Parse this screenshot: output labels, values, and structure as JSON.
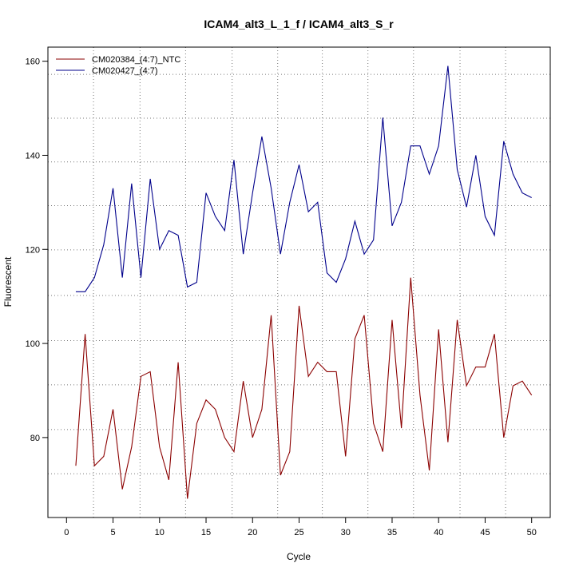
{
  "chart_data": {
    "type": "line",
    "title": "ICAM4_alt3_L_1_f / ICAM4_alt3_S_r",
    "xlabel": "Cycle",
    "ylabel": "Fluorescent",
    "xlim": [
      -2,
      52
    ],
    "ylim": [
      63,
      163
    ],
    "x_ticks": [
      0,
      5,
      10,
      15,
      20,
      25,
      30,
      35,
      40,
      45,
      50
    ],
    "x_tick_labels": [
      "0",
      "5",
      "10",
      "15",
      "20",
      "25",
      "30",
      "35",
      "40",
      "45",
      "50"
    ],
    "y_ticks": [
      80,
      100,
      120,
      140,
      160
    ],
    "y_tick_labels": [
      "80",
      "100",
      "120",
      "140",
      "160"
    ],
    "h_gridlines": [
      72.3,
      81.7,
      91.2,
      100.6,
      110.2,
      119.9,
      129.3,
      138.6,
      147.9,
      157.2
    ],
    "v_gridlines": [
      2.9,
      7.9,
      12.8,
      17.8,
      22.7,
      27.5,
      32.4,
      37.3,
      42.3,
      47.2
    ],
    "legend_position": "top-left",
    "colors": {
      "ntc": "#8b0000",
      "sample": "#00008b"
    },
    "x": [
      1,
      2,
      3,
      4,
      5,
      6,
      7,
      8,
      9,
      10,
      11,
      12,
      13,
      14,
      15,
      16,
      17,
      18,
      19,
      20,
      21,
      22,
      23,
      24,
      25,
      26,
      27,
      28,
      29,
      30,
      31,
      32,
      33,
      34,
      35,
      36,
      37,
      38,
      39,
      40,
      41,
      42,
      43,
      44,
      45,
      46,
      47,
      48,
      49,
      50
    ],
    "series": [
      {
        "name": "CM020384_(4:7)_NTC",
        "color": "#8b0000",
        "values": [
          74,
          102,
          74,
          76,
          86,
          69,
          78,
          93,
          94,
          78,
          71,
          96,
          67,
          83,
          88,
          86,
          80,
          77,
          92,
          80,
          86,
          106,
          72,
          77,
          108,
          93,
          96,
          94,
          94,
          76,
          101,
          106,
          83,
          77,
          105,
          82,
          114,
          89,
          73,
          103,
          79,
          105,
          91,
          95,
          95,
          102,
          80,
          91,
          92,
          89
        ]
      },
      {
        "name": "CM020427_(4:7)",
        "color": "#00008b",
        "values": [
          111,
          111,
          114,
          121,
          133,
          114,
          134,
          114,
          135,
          120,
          124,
          123,
          112,
          113,
          132,
          127,
          124,
          139,
          119,
          132,
          144,
          133,
          119,
          130,
          138,
          128,
          130,
          115,
          113,
          118,
          126,
          119,
          122,
          148,
          125,
          130,
          142,
          142,
          136,
          142,
          159,
          137,
          129,
          140,
          127,
          123,
          143,
          136,
          132,
          131
        ]
      }
    ]
  }
}
